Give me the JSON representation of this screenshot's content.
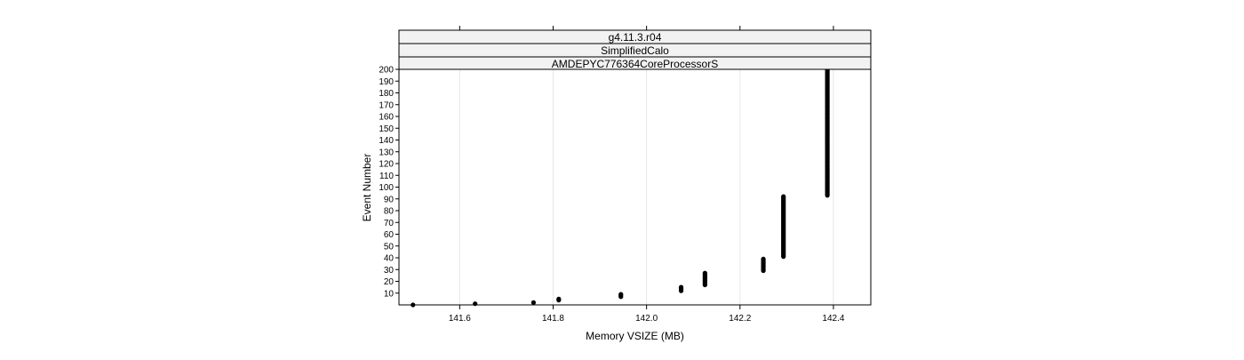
{
  "chart_data": {
    "type": "scatter",
    "strips": [
      "g4.11.3.r04",
      "SimplifiedCalo",
      "AMDEPYC776364CoreProcessorS"
    ],
    "xlabel": "Memory VSIZE (MB)",
    "ylabel": "Event Number",
    "xlim": [
      141.47,
      142.48
    ],
    "ylim": [
      0,
      200
    ],
    "x_ticks": [
      "141.6",
      "141.8",
      "142.0",
      "142.2",
      "142.4"
    ],
    "y_ticks": [
      "10",
      "20",
      "30",
      "40",
      "50",
      "60",
      "70",
      "80",
      "90",
      "100",
      "110",
      "120",
      "130",
      "140",
      "150",
      "160",
      "170",
      "180",
      "190",
      "200"
    ],
    "grid": "vertical",
    "clusters": [
      {
        "x": 141.5,
        "y_from": 0,
        "y_to": 0
      },
      {
        "x": 141.633,
        "y_from": 1,
        "y_to": 1
      },
      {
        "x": 141.758,
        "y_from": 2,
        "y_to": 2
      },
      {
        "x": 141.812,
        "y_from": 4,
        "y_to": 5
      },
      {
        "x": 141.945,
        "y_from": 7,
        "y_to": 9
      },
      {
        "x": 142.074,
        "y_from": 12,
        "y_to": 15
      },
      {
        "x": 142.125,
        "y_from": 17,
        "y_to": 27
      },
      {
        "x": 142.25,
        "y_from": 29,
        "y_to": 39
      },
      {
        "x": 142.293,
        "y_from": 41,
        "y_to": 92
      },
      {
        "x": 142.387,
        "y_from": 93,
        "y_to": 200
      }
    ],
    "point_color": "#000000",
    "strip_color": "#f2f2f2",
    "grid_color": "#e6e6e6"
  }
}
